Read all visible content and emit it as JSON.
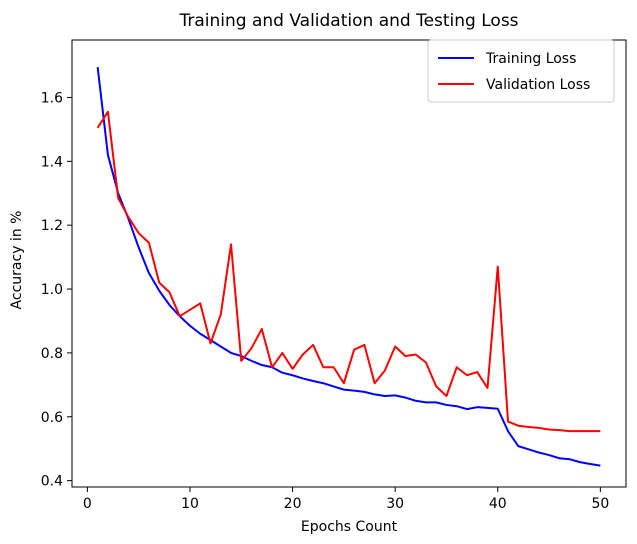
{
  "chart_data": {
    "type": "line",
    "title": "Training and Validation and Testing Loss",
    "xlabel": "Epochs Count",
    "ylabel": "Accuracy in %",
    "xlim": [
      -1.5,
      52.5
    ],
    "ylim": [
      0.38,
      1.78
    ],
    "xticks": [
      0,
      10,
      20,
      30,
      40,
      50
    ],
    "yticks": [
      0.4,
      0.6,
      0.8,
      1.0,
      1.2,
      1.4,
      1.6
    ],
    "ytick_labels": [
      "0.4",
      "0.6",
      "0.8",
      "1.0",
      "1.2",
      "1.4",
      "1.6"
    ],
    "grid": false,
    "legend_position": "top-right",
    "x": [
      1,
      2,
      3,
      4,
      5,
      6,
      7,
      8,
      9,
      10,
      11,
      12,
      13,
      14,
      15,
      16,
      17,
      18,
      19,
      20,
      21,
      22,
      23,
      24,
      25,
      26,
      27,
      28,
      29,
      30,
      31,
      32,
      33,
      34,
      35,
      36,
      37,
      38,
      39,
      40,
      41,
      42,
      43,
      44,
      45,
      46,
      47,
      48,
      49,
      50
    ],
    "series": [
      {
        "name": "Training Loss",
        "color": "#0000ff",
        "values": [
          1.695,
          1.42,
          1.3,
          1.22,
          1.13,
          1.05,
          0.995,
          0.95,
          0.915,
          0.885,
          0.86,
          0.84,
          0.82,
          0.8,
          0.79,
          0.775,
          0.762,
          0.755,
          0.738,
          0.73,
          0.72,
          0.712,
          0.705,
          0.695,
          0.685,
          0.682,
          0.678,
          0.67,
          0.665,
          0.667,
          0.66,
          0.65,
          0.645,
          0.645,
          0.637,
          0.633,
          0.624,
          0.63,
          0.628,
          0.625,
          0.555,
          0.508,
          0.498,
          0.488,
          0.48,
          0.47,
          0.467,
          0.458,
          0.452,
          0.447
        ]
      },
      {
        "name": "Validation Loss",
        "color": "#ff0000",
        "values": [
          1.505,
          1.555,
          1.285,
          1.225,
          1.175,
          1.145,
          1.02,
          0.99,
          0.915,
          0.935,
          0.955,
          0.83,
          0.92,
          1.14,
          0.775,
          0.815,
          0.875,
          0.755,
          0.8,
          0.75,
          0.795,
          0.825,
          0.755,
          0.755,
          0.705,
          0.81,
          0.825,
          0.705,
          0.745,
          0.82,
          0.79,
          0.795,
          0.77,
          0.695,
          0.665,
          0.755,
          0.73,
          0.74,
          0.69,
          1.07,
          0.585,
          0.572,
          0.568,
          0.565,
          0.56,
          0.558,
          0.555,
          0.555,
          0.555,
          0.555
        ]
      }
    ]
  }
}
